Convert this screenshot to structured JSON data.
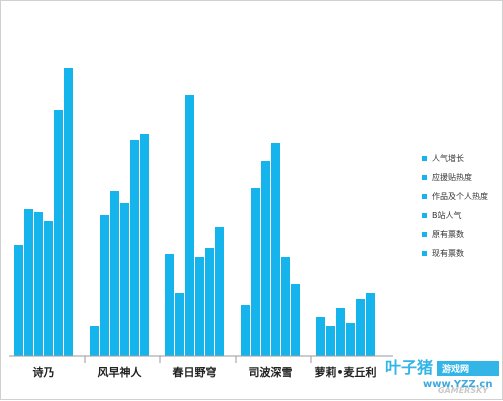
{
  "chart_data": {
    "type": "bar",
    "title": "",
    "xlabel": "",
    "ylabel": "",
    "categories": [
      "诗乃",
      "风早神人",
      "春日野穹",
      "司波深雪",
      "萝莉•麦丘利"
    ],
    "ylim": [
      0,
      100
    ],
    "grid": false,
    "legend_position": "right",
    "bar_color": "#16b4ec",
    "series": [
      {
        "name": "人气增长",
        "values": [
          37,
          10,
          34,
          17,
          13
        ]
      },
      {
        "name": "应援贴热度",
        "values": [
          49,
          47,
          21,
          56,
          10
        ]
      },
      {
        "name": "作品及个人热度",
        "values": [
          48,
          55,
          87,
          65,
          16
        ]
      },
      {
        "name": "B站人气",
        "values": [
          45,
          51,
          33,
          71,
          11
        ]
      },
      {
        "name": "原有票数",
        "values": [
          82,
          72,
          36,
          33,
          19
        ]
      },
      {
        "name": "现有票数",
        "values": [
          96,
          74,
          43,
          24,
          21
        ]
      }
    ]
  },
  "watermark": {
    "site_name": "叶子猪",
    "site_tag": "游戏网",
    "url": "www.YZZ.cn",
    "ghost_text": "GAMERSKY"
  }
}
